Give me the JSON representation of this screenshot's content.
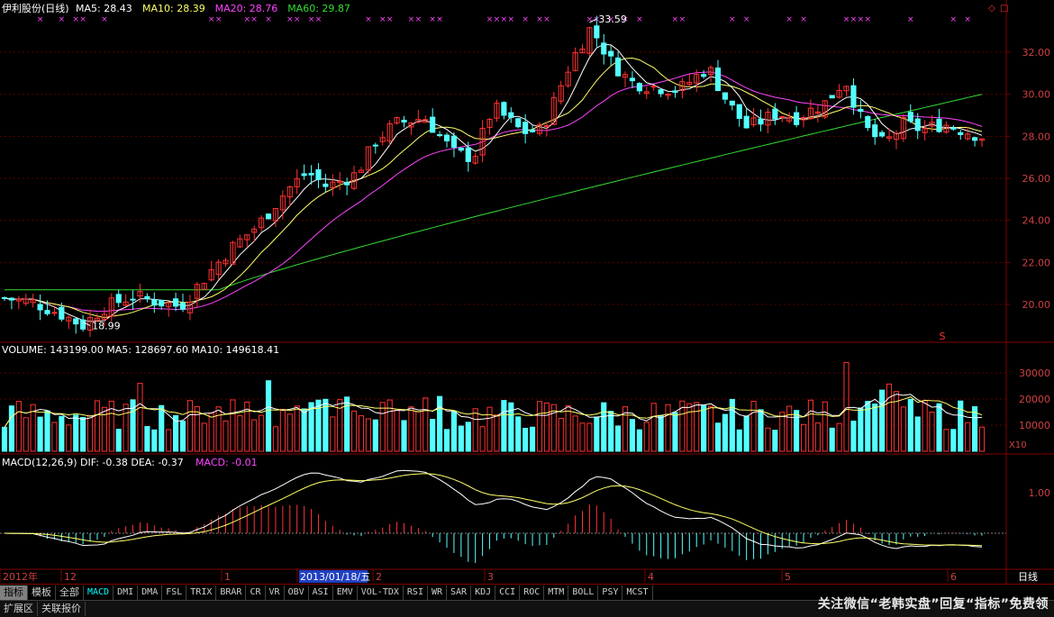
{
  "header": {
    "stock_name": "伊利股份(日线)",
    "ma_values": [
      {
        "label": "MA5: 28.43",
        "color": "#ffffff"
      },
      {
        "label": "MA10: 28.39",
        "color": "#ffff66"
      },
      {
        "label": "MA20: 28.76",
        "color": "#ff44ff"
      },
      {
        "label": "MA60: 29.87",
        "color": "#33dd33"
      }
    ]
  },
  "volume_header": "VOLUME: 143199.00  MA5: 128697.60  MA10: 149618.41",
  "macd_header": {
    "label": "MACD(12,26,9)  DIF: -0.38  DEA: -0.37",
    "macd": "MACD: -0.01"
  },
  "price_axis": {
    "ticks": [
      "32.00",
      "30.00",
      "28.00",
      "26.00",
      "24.00",
      "22.00",
      "20.00"
    ],
    "min": 19.0,
    "max": 33.59
  },
  "volume_axis": {
    "ticks": [
      "30000",
      "20000",
      "10000"
    ],
    "unit": "X10"
  },
  "macd_axis": {
    "ticks": [
      "1.00"
    ]
  },
  "annotations": {
    "high": "33.59",
    "low": "18.99",
    "marker": "S"
  },
  "x_axis": {
    "labels": [
      "2012年",
      "12",
      "1",
      "2013/01/18/五",
      "2",
      "3",
      "4",
      "5",
      "6"
    ],
    "period": "日线"
  },
  "tabs": [
    "指标",
    "模板",
    "全部",
    "MACD",
    "DMI",
    "DMA",
    "FSL",
    "TRIX",
    "BRAR",
    "CR",
    "VR",
    "OBV",
    "ASI",
    "EMV",
    "VOL-TDX",
    "RSI",
    "WR",
    "SAR",
    "KDJ",
    "CCI",
    "ROC",
    "MTM",
    "BOLL",
    "PSY",
    "MCST"
  ],
  "bottom_buttons": [
    "扩展区",
    "关联报价"
  ],
  "watermark": "关注微信“老韩实盘”回复“指标”免费领",
  "colors": {
    "up": "#ff3232",
    "down": "#54ffff",
    "ma5": "#ffffff",
    "ma10": "#ffff66",
    "ma20": "#ff44ff",
    "ma60": "#33dd33",
    "grid": "#800000"
  },
  "chart_data": [
    {
      "type": "candlestick",
      "title": "伊利股份(日线)",
      "ylim": [
        19.0,
        33.59
      ],
      "keypoints_x_fraction_of_period": [
        0,
        1
      ],
      "close_path": [
        [
          0.0,
          20.3
        ],
        [
          0.03,
          20.1
        ],
        [
          0.06,
          19.5
        ],
        [
          0.08,
          19.0
        ],
        [
          0.1,
          19.8
        ],
        [
          0.13,
          20.4
        ],
        [
          0.16,
          20.1
        ],
        [
          0.18,
          19.9
        ],
        [
          0.2,
          21.0
        ],
        [
          0.23,
          22.6
        ],
        [
          0.26,
          23.8
        ],
        [
          0.29,
          25.5
        ],
        [
          0.31,
          26.3
        ],
        [
          0.33,
          25.6
        ],
        [
          0.36,
          26.2
        ],
        [
          0.38,
          27.8
        ],
        [
          0.4,
          28.6
        ],
        [
          0.43,
          28.9
        ],
        [
          0.46,
          27.2
        ],
        [
          0.48,
          27.0
        ],
        [
          0.5,
          29.4
        ],
        [
          0.53,
          28.2
        ],
        [
          0.55,
          28.3
        ],
        [
          0.58,
          31.6
        ],
        [
          0.6,
          33.2
        ],
        [
          0.62,
          31.6
        ],
        [
          0.64,
          30.6
        ],
        [
          0.66,
          30.4
        ],
        [
          0.69,
          30.2
        ],
        [
          0.72,
          31.3
        ],
        [
          0.74,
          29.6
        ],
        [
          0.76,
          28.4
        ],
        [
          0.79,
          29.1
        ],
        [
          0.81,
          28.9
        ],
        [
          0.84,
          29.6
        ],
        [
          0.86,
          30.7
        ],
        [
          0.88,
          28.4
        ],
        [
          0.9,
          27.6
        ],
        [
          0.92,
          28.6
        ],
        [
          0.94,
          28.3
        ],
        [
          0.96,
          28.6
        ],
        [
          1.0,
          28.0
        ]
      ]
    },
    {
      "type": "bar",
      "title": "VOLUME",
      "ylim": [
        0,
        35000
      ],
      "series": [
        {
          "name": "VOLUME",
          "values_unit": "X10"
        }
      ]
    },
    {
      "type": "line",
      "title": "MACD(12,26,9)",
      "series": [
        {
          "name": "DIF"
        },
        {
          "name": "DEA"
        },
        {
          "name": "MACD"
        }
      ]
    }
  ]
}
